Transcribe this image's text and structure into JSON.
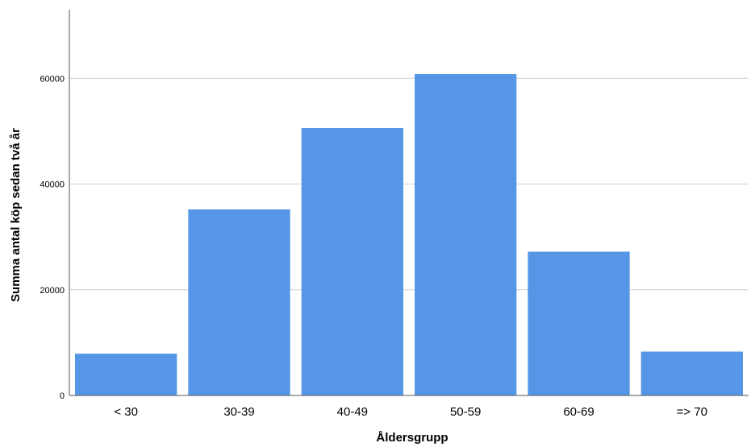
{
  "chart_data": {
    "type": "bar",
    "categories": [
      "< 30",
      "30-39",
      "40-49",
      "50-59",
      "60-69",
      "=> 70"
    ],
    "values": [
      7900,
      35200,
      50600,
      60800,
      27200,
      8300
    ],
    "xlabel": "Åldersgrupp",
    "ylabel": "Summa antal köp sedan två år",
    "ylim": [
      0,
      73000
    ],
    "yticks": [
      0,
      20000,
      40000,
      60000
    ],
    "grid": true,
    "legend": "none",
    "colors": {
      "bar": "#5596e6",
      "grid": "#d0d0d0",
      "axis": "#555555"
    }
  }
}
